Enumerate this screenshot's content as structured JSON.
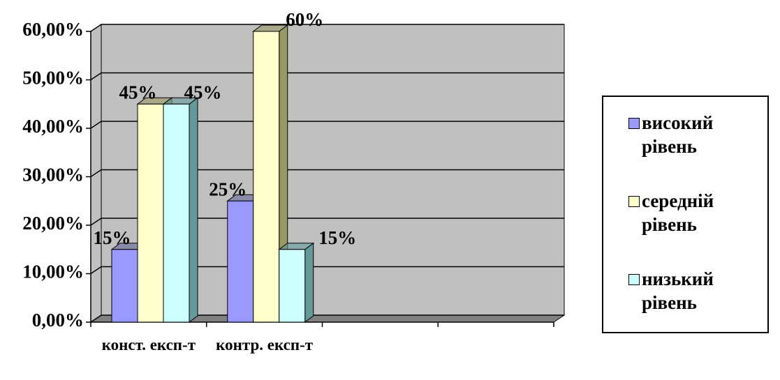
{
  "chart_data": {
    "type": "bar3d",
    "categories": [
      "конст. експ-т",
      "контр. експ-т",
      null,
      null
    ],
    "series": [
      {
        "name": "високий рівень",
        "color": "#9999ff",
        "side": "#666699",
        "values": [
          15,
          25,
          null,
          null
        ],
        "value_labels": [
          "15%",
          "25%",
          null,
          null
        ]
      },
      {
        "name": "середній рівень",
        "color": "#ffffcc",
        "side": "#999966",
        "values": [
          45,
          60,
          null,
          null
        ],
        "value_labels": [
          "45%",
          "60%",
          null,
          null
        ]
      },
      {
        "name": "низький рівень",
        "color": "#ccffff",
        "side": "#669999",
        "values": [
          45,
          15,
          null,
          null
        ],
        "value_labels": [
          "45%",
          "15%",
          null,
          null
        ]
      }
    ],
    "ylim": [
      0,
      60
    ],
    "yticks": [
      {
        "value": 0,
        "label": "0,00%"
      },
      {
        "value": 10,
        "label": "10,00%"
      },
      {
        "value": 20,
        "label": "20,00%"
      },
      {
        "value": 30,
        "label": "30,00%"
      },
      {
        "value": 40,
        "label": "40,00%"
      },
      {
        "value": 50,
        "label": "50,00%"
      },
      {
        "value": 60,
        "label": "60,00%"
      }
    ],
    "grid": true,
    "wall_color": "#c0c0c0",
    "legend": "right"
  }
}
